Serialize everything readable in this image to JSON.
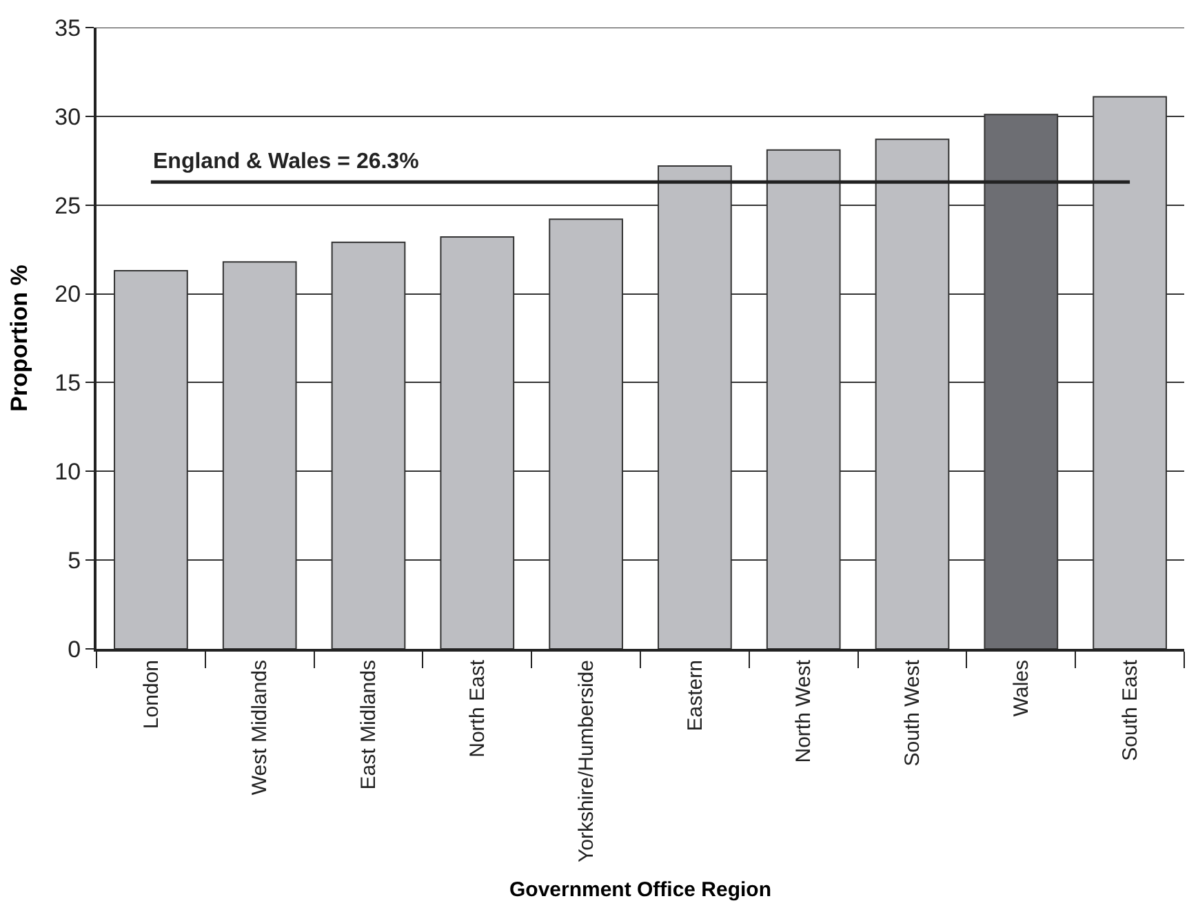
{
  "chart_data": {
    "type": "bar",
    "xlabel": "Government Office Region",
    "ylabel": "Proportion %",
    "categories": [
      "London",
      "West Midlands",
      "East Midlands",
      "North East",
      "Yorkshire/Humberside",
      "Eastern",
      "North West",
      "South West",
      "Wales",
      "South East"
    ],
    "values": [
      21.3,
      21.8,
      22.9,
      23.2,
      24.2,
      27.2,
      28.1,
      28.7,
      30.1,
      31.1
    ],
    "colors": [
      "#bdbec2",
      "#bdbec2",
      "#bdbec2",
      "#bdbec2",
      "#bdbec2",
      "#bdbec2",
      "#bdbec2",
      "#bdbec2",
      "#6d6e73",
      "#bdbec2"
    ],
    "ylim": [
      0,
      35
    ],
    "yticks": [
      0,
      5,
      10,
      15,
      20,
      25,
      30,
      35
    ],
    "grid": "y",
    "ref_lines": [
      {
        "axis": "y",
        "value": 26.3,
        "label": "England & Wales = 26.3%",
        "color": "#222222"
      }
    ]
  }
}
